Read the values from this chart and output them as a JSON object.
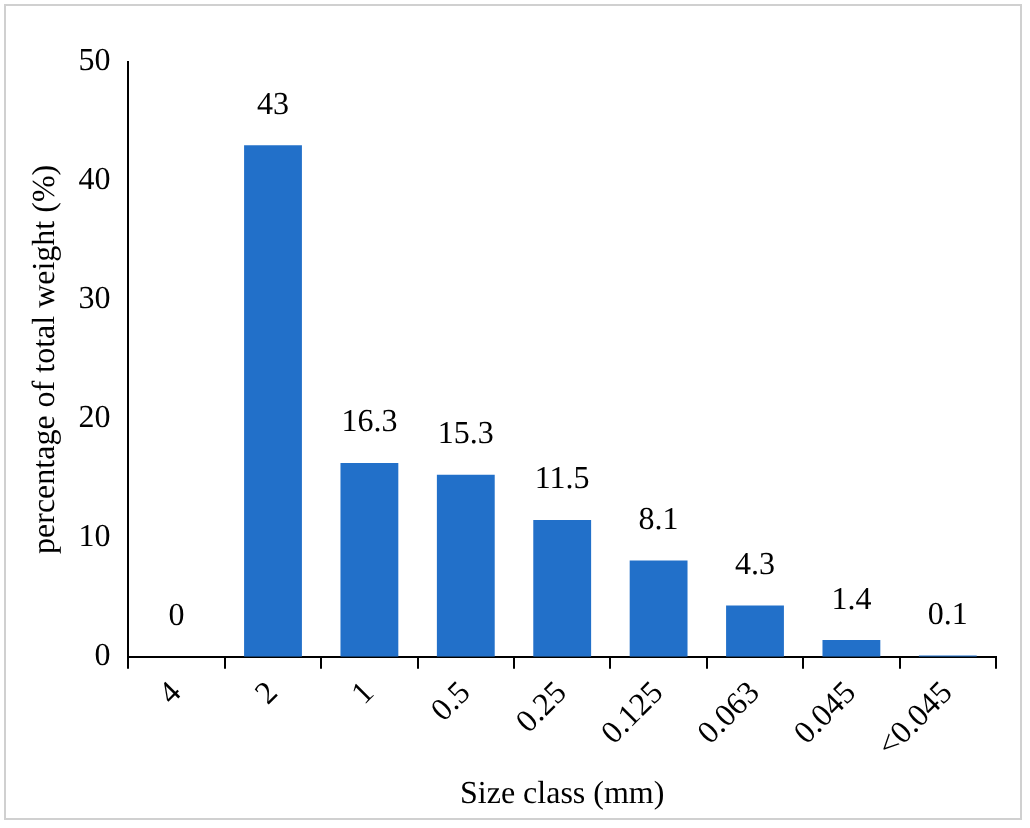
{
  "chart_data": {
    "type": "bar",
    "xlabel": "Size class (mm)",
    "ylabel": "percentage of total weight (%)",
    "categories": [
      "4",
      "2",
      "1",
      "0.5",
      "0.25",
      "0.125",
      "0.063",
      "0.045",
      "<0.045"
    ],
    "values": [
      0,
      43,
      16.3,
      15.3,
      11.5,
      8.1,
      4.3,
      1.4,
      0.1
    ],
    "color": "#2270c9",
    "ylim": [
      0,
      50
    ],
    "yticks": [
      0,
      10,
      20,
      30,
      40,
      50
    ],
    "grid": false,
    "legend": false,
    "data_labels": true
  }
}
